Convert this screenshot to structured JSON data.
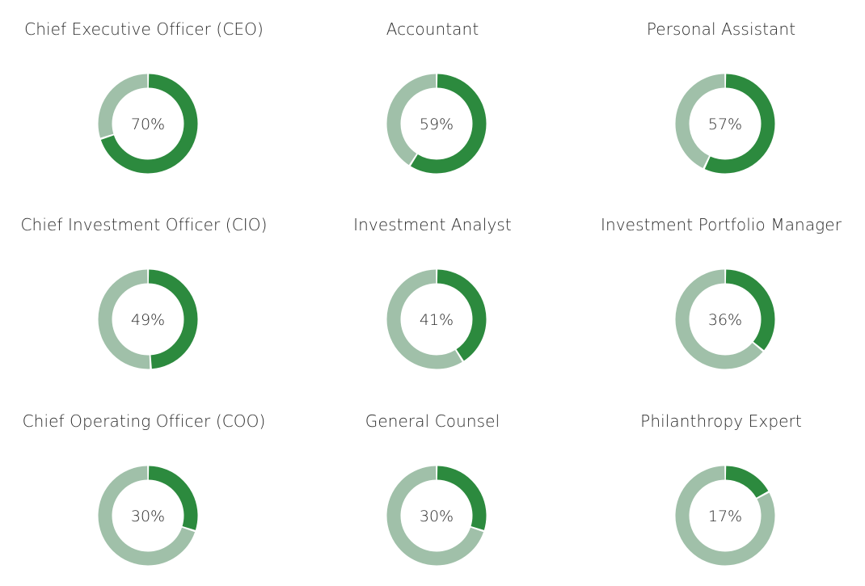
{
  "colors": {
    "filled": "#2c8a3e",
    "remaining": "#a0c0a9",
    "text": "#2b2b2b"
  },
  "chart_data": [
    {
      "type": "pie",
      "title": "Chief Executive Officer (CEO)",
      "value": 70,
      "label": "70%"
    },
    {
      "type": "pie",
      "title": "Accountant",
      "value": 59,
      "label": "59%"
    },
    {
      "type": "pie",
      "title": "Personal Assistant",
      "value": 57,
      "label": "57%"
    },
    {
      "type": "pie",
      "title": "Chief Investment Officer (CIO)",
      "value": 49,
      "label": "49%"
    },
    {
      "type": "pie",
      "title": "Investment Analyst",
      "value": 41,
      "label": "41%"
    },
    {
      "type": "pie",
      "title": "Investment Portfolio Manager",
      "value": 36,
      "label": "36%"
    },
    {
      "type": "pie",
      "title": "Chief Operating Officer (COO)",
      "value": 30,
      "label": "30%"
    },
    {
      "type": "pie",
      "title": "General Counsel",
      "value": 30,
      "label": "30%"
    },
    {
      "type": "pie",
      "title": "Philanthropy Expert",
      "value": 17,
      "label": "17%"
    }
  ]
}
